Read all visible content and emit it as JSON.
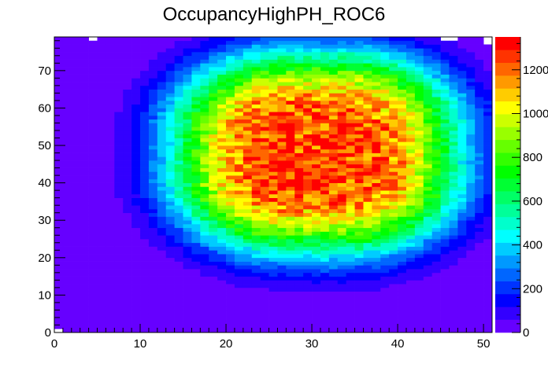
{
  "chart_data": {
    "type": "heatmap",
    "title": "OccupancyHighPH_ROC6",
    "xlabel": "",
    "ylabel": "",
    "xlim": [
      0,
      51
    ],
    "ylim": [
      0,
      79
    ],
    "x_ticks": [
      "0",
      "10",
      "20",
      "30",
      "40",
      "50"
    ],
    "y_ticks": [
      "0",
      "10",
      "20",
      "30",
      "40",
      "50",
      "60",
      "70"
    ],
    "colorbar": {
      "range": [
        0,
        1350
      ],
      "ticks": [
        "0",
        "200",
        "400",
        "600",
        "800",
        "1000",
        "1200"
      ],
      "colors": [
        "#6600ff",
        "#3300ff",
        "#0000ff",
        "#0033ff",
        "#0066ff",
        "#0099ff",
        "#00ccff",
        "#00ffff",
        "#00ffcc",
        "#00ff99",
        "#00ff66",
        "#00ff33",
        "#00ff00",
        "#33ff00",
        "#66ff00",
        "#99ff00",
        "#ccff00",
        "#ffff00",
        "#ffcc00",
        "#ff9900",
        "#ff6600",
        "#ff3300",
        "#ff0000"
      ]
    },
    "distribution": {
      "baseline": 0,
      "peak": 1250,
      "center_col": 30.5,
      "center_row": 48,
      "flat_radius_x": 3,
      "flat_radius_y": 5,
      "falloff_x": 14,
      "falloff_y": 22,
      "exponent": 3
    },
    "empty_cells": [
      [
        0,
        0
      ],
      [
        4,
        78
      ],
      [
        45,
        78
      ],
      [
        46,
        78
      ],
      [
        50,
        77
      ],
      [
        51,
        77
      ],
      [
        50,
        78
      ]
    ],
    "grid": false,
    "legend": "colorbar-right"
  }
}
